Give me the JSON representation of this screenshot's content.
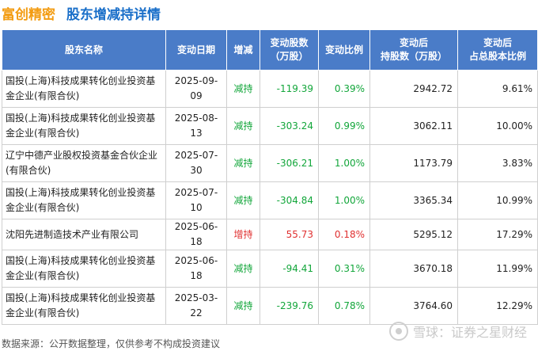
{
  "header": {
    "stock_name": "富创精密",
    "title": "股东增减持详情"
  },
  "colors": {
    "header_bg": "#4a7cc8",
    "stock_name": "#f39c12",
    "title": "#1a6fc9",
    "decrease": "#12a63a",
    "increase": "#e03030"
  },
  "table": {
    "columns": [
      "股东名称",
      "变动日期",
      "增减",
      "变动股数\n（万股）",
      "变动比例",
      "变动后\n持股数（万股）",
      "变动后\n占总股本比例"
    ],
    "rows": [
      {
        "name": "国投(上海)科技成果转化创业投资基金企业(有限合伙)",
        "date": "2025-09-09",
        "direction": "减持",
        "shares": "-119.39",
        "ratio": "0.39%",
        "after_shares": "2942.72",
        "after_ratio": "9.61%"
      },
      {
        "name": "国投(上海)科技成果转化创业投资基金企业(有限合伙)",
        "date": "2025-08-13",
        "direction": "减持",
        "shares": "-303.24",
        "ratio": "0.99%",
        "after_shares": "3062.11",
        "after_ratio": "10.00%"
      },
      {
        "name": "辽宁中德产业股权投资基金合伙企业(有限合伙)",
        "date": "2025-07-30",
        "direction": "减持",
        "shares": "-306.21",
        "ratio": "1.00%",
        "after_shares": "1173.79",
        "after_ratio": "3.83%"
      },
      {
        "name": "国投(上海)科技成果转化创业投资基金企业(有限合伙)",
        "date": "2025-07-10",
        "direction": "减持",
        "shares": "-304.84",
        "ratio": "1.00%",
        "after_shares": "3365.34",
        "after_ratio": "10.99%"
      },
      {
        "name": "沈阳先进制造技术产业有限公司",
        "date": "2025-06-18",
        "direction": "增持",
        "shares": "55.73",
        "ratio": "0.18%",
        "after_shares": "5295.12",
        "after_ratio": "17.29%"
      },
      {
        "name": "国投(上海)科技成果转化创业投资基金企业(有限合伙)",
        "date": "2025-06-18",
        "direction": "减持",
        "shares": "-94.41",
        "ratio": "0.31%",
        "after_shares": "3670.18",
        "after_ratio": "11.99%"
      },
      {
        "name": "国投(上海)科技成果转化创业投资基金企业(有限合伙)",
        "date": "2025-03-22",
        "direction": "减持",
        "shares": "-239.76",
        "ratio": "0.78%",
        "after_shares": "3764.60",
        "after_ratio": "12.29%"
      }
    ]
  },
  "footer": {
    "source": "数据来源：公开数据整理，仅供参考不构成投资建议"
  },
  "watermark": {
    "text": "雪球：证券之星财经"
  }
}
